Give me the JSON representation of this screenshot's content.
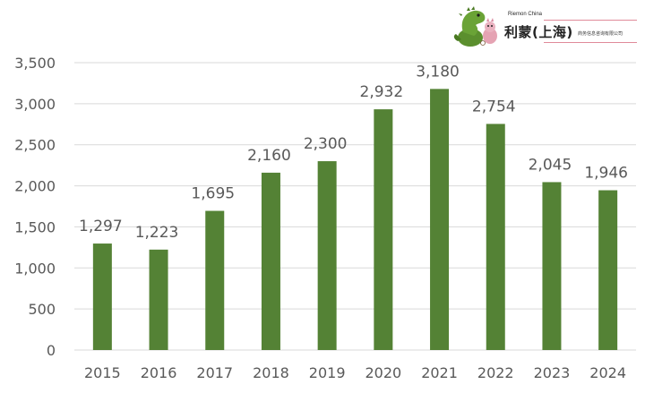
{
  "chart_data": {
    "type": "bar",
    "title": "",
    "xlabel": "",
    "ylabel": "",
    "categories": [
      "2015",
      "2016",
      "2017",
      "2018",
      "2019",
      "2020",
      "2021",
      "2022",
      "2023",
      "2024"
    ],
    "values": [
      1297,
      1223,
      1695,
      2160,
      2300,
      2932,
      3180,
      2754,
      2045,
      1946
    ],
    "value_labels": [
      "1,297",
      "1,223",
      "1,695",
      "2,160",
      "2,300",
      "2,932",
      "3,180",
      "2,754",
      "2,045",
      "1,946"
    ],
    "ylim": [
      0,
      3500
    ],
    "yticks": [
      0,
      500,
      1000,
      1500,
      2000,
      2500,
      3000,
      3500
    ],
    "ytick_labels": [
      "0",
      "500",
      "1,000",
      "1,500",
      "2,000",
      "2,500",
      "3,000",
      "3,500"
    ],
    "grid": true,
    "legend": "none",
    "bar_color": "#548235",
    "grid_color": "#d9d9d9",
    "text_color": "#595959"
  },
  "logo": {
    "name_en": "Riemon China",
    "name_cn": "利蒙(上海)",
    "subtitle_cn": "商务信息咨询有限公司",
    "mascot_icon": "dinosaur-mascot-icon",
    "mascot_color": "#5b8f2e",
    "accent_color": "#e08a9a"
  }
}
